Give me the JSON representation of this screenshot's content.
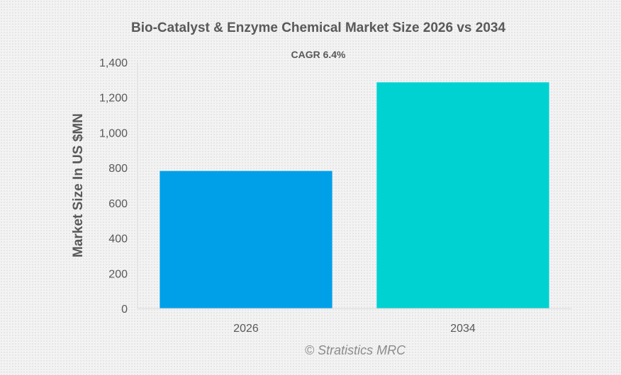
{
  "chart_data": {
    "type": "bar",
    "title": "Bio-Catalyst & Enzyme Chemical Market Size 2026 vs 2034",
    "annotation": "CAGR 6.4%",
    "xlabel": "",
    "ylabel": "Market Size In US $MN",
    "ylim": [
      0,
      1400
    ],
    "yticks": [
      0,
      200,
      400,
      600,
      800,
      1000,
      1200,
      1400
    ],
    "ytick_labels": [
      "0",
      "200",
      "400",
      "600",
      "800",
      "1,000",
      "1,200",
      "1,400"
    ],
    "categories": [
      "2026",
      "2034"
    ],
    "values": [
      782,
      1286
    ],
    "colors": [
      "#00a0e9",
      "#00d2d2"
    ],
    "grid": false,
    "legend": "none",
    "credit": "© Stratistics MRC"
  }
}
